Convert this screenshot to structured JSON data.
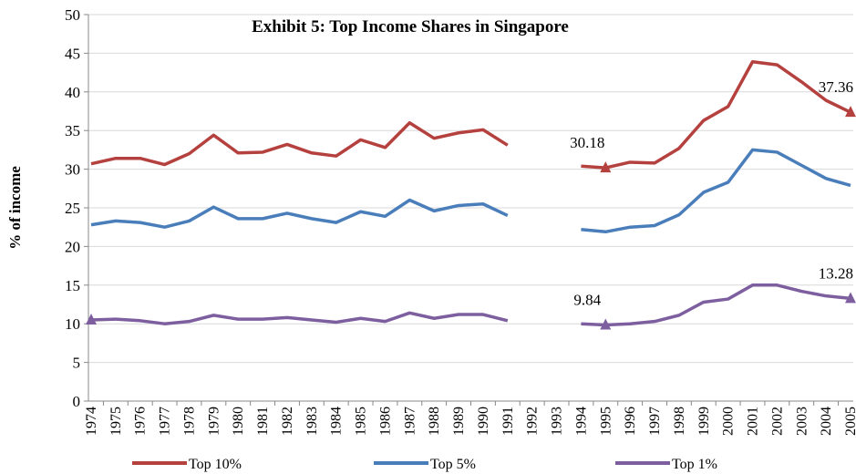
{
  "chart_data": {
    "type": "line",
    "title": "Exhibit 5: Top Income Shares in Singapore",
    "y_label": "% of income",
    "categories": [
      "1974",
      "1975",
      "1976",
      "1977",
      "1978",
      "1979",
      "1980",
      "1981",
      "1982",
      "1983",
      "1984",
      "1985",
      "1986",
      "1987",
      "1988",
      "1989",
      "1990",
      "1991",
      "1992",
      "1993",
      "1994",
      "1995",
      "1996",
      "1997",
      "1998",
      "1999",
      "2000",
      "2001",
      "2002",
      "2003",
      "2004",
      "2005"
    ],
    "series": [
      {
        "name": "Top 10%",
        "color": "#b5413e",
        "marker_points": [
          21,
          31
        ],
        "labeled_points": [
          21,
          31
        ],
        "values": [
          30.7,
          31.4,
          31.4,
          30.6,
          32.0,
          34.4,
          32.1,
          32.2,
          33.2,
          32.1,
          31.7,
          33.8,
          32.8,
          36.0,
          34.0,
          34.7,
          35.1,
          33.1,
          null,
          null,
          30.4,
          30.18,
          30.9,
          30.8,
          32.7,
          36.3,
          38.1,
          43.9,
          43.5,
          41.3,
          38.9,
          37.36
        ]
      },
      {
        "name": "Top 5%",
        "color": "#4a7ebb",
        "marker_points": [],
        "labeled_points": [],
        "values": [
          22.8,
          23.3,
          23.1,
          22.5,
          23.3,
          25.1,
          23.6,
          23.6,
          24.3,
          23.6,
          23.1,
          24.5,
          23.9,
          26.0,
          24.6,
          25.3,
          25.5,
          24.0,
          null,
          null,
          22.2,
          21.9,
          22.5,
          22.7,
          24.1,
          27.0,
          28.3,
          32.5,
          32.2,
          30.5,
          28.8,
          27.9
        ]
      },
      {
        "name": "Top 1%",
        "color": "#7d5fa0",
        "marker_points": [
          0,
          21,
          31
        ],
        "labeled_points": [
          21,
          31
        ],
        "values": [
          10.5,
          10.6,
          10.4,
          10.0,
          10.3,
          11.1,
          10.6,
          10.6,
          10.8,
          10.5,
          10.2,
          10.7,
          10.3,
          11.4,
          10.7,
          11.2,
          11.2,
          10.4,
          null,
          null,
          10.0,
          9.84,
          10.0,
          10.3,
          11.1,
          12.8,
          13.2,
          15.0,
          15.0,
          14.2,
          13.6,
          13.28
        ]
      }
    ],
    "ylim": [
      0,
      50
    ],
    "yticks": [
      0,
      5,
      10,
      15,
      20,
      25,
      30,
      35,
      40,
      45,
      50
    ],
    "grid": true,
    "legend": "bottom"
  }
}
